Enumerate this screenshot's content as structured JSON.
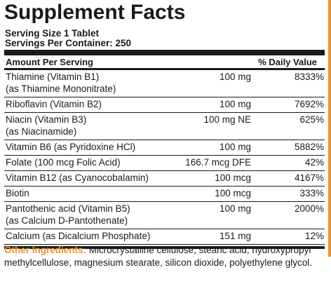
{
  "title": "Supplement Facts",
  "serving_size": "Serving Size 1 Tablet",
  "servings_per_container": "Servings Per Container: 250",
  "header": {
    "amount": "Amount Per Serving",
    "dv": "% Daily Value"
  },
  "rows": [
    {
      "name": "Thiamine (Vitamin B1)",
      "sub": "(as Thiamine Mononitrate)",
      "amount": "100 mg",
      "dv": "8333%"
    },
    {
      "name": "Riboflavin (Vitamin B2)",
      "sub": "",
      "amount": "100 mg",
      "dv": "7692%"
    },
    {
      "name": "Niacin (Vitamin B3)",
      "sub": "(as Niacinamide)",
      "amount": "100 mg NE",
      "dv": "625%"
    },
    {
      "name": "Vitamin B6 (as Pyridoxine HCl)",
      "sub": "",
      "amount": "100 mg",
      "dv": "5882%"
    },
    {
      "name": "Folate (100 mcg Folic Acid)",
      "sub": "",
      "amount": "166.7 mcg DFE",
      "dv": "42%"
    },
    {
      "name": "Vitamin B12 (as Cyanocobalamin)",
      "sub": "",
      "amount": "100 mcg",
      "dv": "4167%"
    },
    {
      "name": "Biotin",
      "sub": "",
      "amount": "100 mcg",
      "dv": "333%"
    },
    {
      "name": "Pantothenic acid (Vitamin B5)",
      "sub": "(as Calcium D-Pantothenate)",
      "amount": "100 mg",
      "dv": "2000%"
    },
    {
      "name": "Calcium (as Dicalcium Phosphate)",
      "sub": "",
      "amount": "151 mg",
      "dv": "12%"
    }
  ],
  "other_ingredients": {
    "label": "Other Ingredients:",
    "text": " Microcrystalline cellulose, stearic acid, hydroxypropyl methylcellulose, magnesium stearate, silicon dioxide, polyethylene glycol."
  },
  "colors": {
    "accent": "#e8942b",
    "text": "#1a1a1a"
  }
}
